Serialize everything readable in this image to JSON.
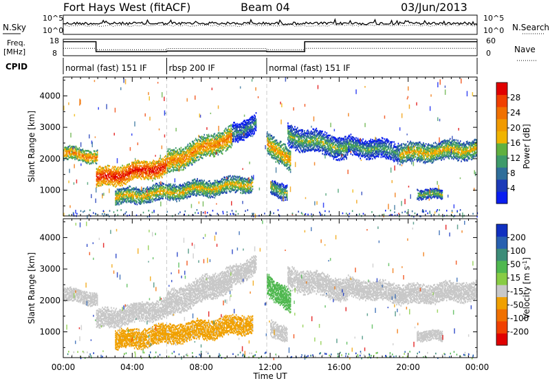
{
  "header": {
    "radar": "Fort Hays West (fitACF)",
    "beam": "Beam 04",
    "date": "03/Jun/2013"
  },
  "side_labels": {
    "nsky": "N.Sky",
    "nsearch": "N.Search",
    "freq": "Freq.",
    "freq_unit": "[MHz]",
    "nave": "Nave",
    "cpid": "CPID"
  },
  "noise_panel": {
    "left_ticks": [
      "10^5",
      "10^0"
    ],
    "right_ticks": [
      "10^5",
      "10^0"
    ]
  },
  "freq_panel": {
    "left_ticks": [
      "18",
      "8"
    ],
    "right_ticks": [
      "60",
      "0"
    ]
  },
  "cpid_panel": {
    "segments": [
      {
        "label": "normal (fast) 151 IF",
        "start_h": 0,
        "end_h": 6
      },
      {
        "label": "rbsp 200 IF",
        "start_h": 6,
        "end_h": 11.8
      },
      {
        "label": "normal (fast) 151 IF",
        "start_h": 11.8,
        "end_h": 24
      }
    ]
  },
  "time_axis": {
    "label": "Time UT",
    "ticks": [
      "00:00",
      "04:00",
      "08:00",
      "12:00",
      "16:00",
      "20:00",
      "00:00"
    ]
  },
  "chart_data": [
    {
      "type": "heatmap",
      "name": "Power",
      "ylabel": "Slant Range [km]",
      "yticks": [
        1000,
        2000,
        3000,
        4000
      ],
      "ylim": [
        180,
        4600
      ],
      "xlim_hours": [
        0,
        24
      ],
      "colorbar": {
        "label": "Power [dB]",
        "ticks": [
          "4",
          "8",
          "12",
          "16",
          "20",
          "24",
          "28"
        ],
        "colors": [
          "#0a1ef0",
          "#1c3ab8",
          "#2f6e9a",
          "#3e9a6a",
          "#60b040",
          "#f0b400",
          "#f09a00",
          "#f07000",
          "#f04000",
          "#e00000"
        ]
      },
      "echo_bands": [
        {
          "start_h": 0,
          "end_h": 2.0,
          "r_start": 2150,
          "r_end": 2050,
          "width": 180,
          "power_db": 18
        },
        {
          "start_h": 1.9,
          "end_h": 6.0,
          "r_start": 1350,
          "r_end": 1750,
          "width": 260,
          "power_db": 24
        },
        {
          "start_h": 6.0,
          "end_h": 9.8,
          "r_start": 1850,
          "r_end": 2700,
          "width": 320,
          "power_db": 18
        },
        {
          "start_h": 3.0,
          "end_h": 11.0,
          "r_start": 750,
          "r_end": 1200,
          "width": 230,
          "power_db": 14
        },
        {
          "start_h": 9.8,
          "end_h": 11.2,
          "r_start": 2800,
          "r_end": 3100,
          "width": 250,
          "power_db": 6
        },
        {
          "start_h": 11.8,
          "end_h": 13.2,
          "r_start": 2550,
          "r_end": 1850,
          "width": 320,
          "power_db": 16
        },
        {
          "start_h": 13.0,
          "end_h": 16.5,
          "r_start": 2700,
          "r_end": 2300,
          "width": 300,
          "power_db": 10
        },
        {
          "start_h": 16.5,
          "end_h": 19.5,
          "r_start": 2400,
          "r_end": 2200,
          "width": 250,
          "power_db": 8
        },
        {
          "start_h": 19.5,
          "end_h": 24.0,
          "r_start": 2150,
          "r_end": 2300,
          "width": 280,
          "power_db": 14
        },
        {
          "start_h": 12.0,
          "end_h": 13.0,
          "r_start": 1050,
          "r_end": 950,
          "width": 220,
          "power_db": 10
        },
        {
          "start_h": 20.5,
          "end_h": 22.0,
          "r_start": 900,
          "r_end": 800,
          "width": 120,
          "power_db": 10
        }
      ]
    },
    {
      "type": "heatmap",
      "name": "Velocity",
      "ylabel": "Slant Range [km]",
      "yticks": [
        1000,
        2000,
        3000,
        4000
      ],
      "ylim": [
        180,
        4600
      ],
      "xlim_hours": [
        0,
        24
      ],
      "colorbar": {
        "label": "Velocity [m s-1]",
        "label_main": "Velocity [m s",
        "label_sup": "-1",
        "label_end": "]",
        "ticks": [
          "200",
          "100",
          "50",
          "15",
          "-15",
          "-50",
          "-100",
          "-200"
        ],
        "colors": [
          "#1030c0",
          "#2860b0",
          "#3c8c78",
          "#50b850",
          "#88cc44",
          "#c8c8c8",
          "#f0a000",
          "#f07000",
          "#f04000",
          "#e00000"
        ]
      },
      "echo_bands": [
        {
          "start_h": 0,
          "end_h": 2.0,
          "r_start": 2150,
          "r_end": 2050,
          "width": 200,
          "velocity": 0
        },
        {
          "start_h": 1.9,
          "end_h": 6.0,
          "r_start": 1350,
          "r_end": 1750,
          "width": 280,
          "velocity": 0
        },
        {
          "start_h": 6.0,
          "end_h": 9.8,
          "r_start": 1850,
          "r_end": 2700,
          "width": 340,
          "velocity": 0
        },
        {
          "start_h": 3.0,
          "end_h": 11.0,
          "r_start": 700,
          "r_end": 1250,
          "width": 260,
          "velocity": -60
        },
        {
          "start_h": 9.8,
          "end_h": 11.2,
          "r_start": 2800,
          "r_end": 3100,
          "width": 250,
          "velocity": 0
        },
        {
          "start_h": 11.8,
          "end_h": 13.2,
          "r_start": 2550,
          "r_end": 1850,
          "width": 320,
          "velocity": 30
        },
        {
          "start_h": 13.0,
          "end_h": 16.5,
          "r_start": 2700,
          "r_end": 2300,
          "width": 300,
          "velocity": 0
        },
        {
          "start_h": 16.5,
          "end_h": 19.5,
          "r_start": 2400,
          "r_end": 2200,
          "width": 250,
          "velocity": 0
        },
        {
          "start_h": 19.5,
          "end_h": 24.0,
          "r_start": 2150,
          "r_end": 2300,
          "width": 280,
          "velocity": 0
        },
        {
          "start_h": 12.0,
          "end_h": 13.0,
          "r_start": 1050,
          "r_end": 950,
          "width": 220,
          "velocity": 0
        },
        {
          "start_h": 20.5,
          "end_h": 22.0,
          "r_start": 900,
          "r_end": 800,
          "width": 120,
          "velocity": 0
        }
      ]
    }
  ]
}
